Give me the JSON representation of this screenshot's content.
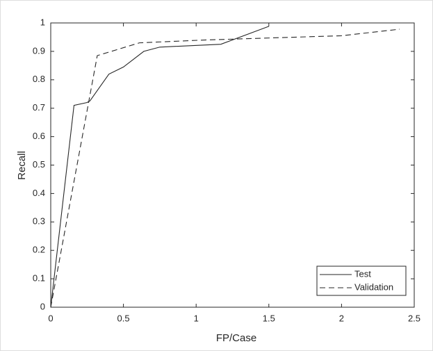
{
  "chart_data": {
    "type": "line",
    "x_label": "FP/Case",
    "y_label": "Recall",
    "xlim": [
      0,
      2.5
    ],
    "ylim": [
      0,
      1
    ],
    "xticks": [
      0,
      0.5,
      1,
      1.5,
      2,
      2.5
    ],
    "yticks": [
      0,
      0.1,
      0.2,
      0.3,
      0.4,
      0.5,
      0.6,
      0.7,
      0.8,
      0.9,
      1
    ],
    "legend": "lower right",
    "series": [
      {
        "name": "Test",
        "color": "#262626",
        "style": "solid",
        "x": [
          0,
          0.16,
          0.25,
          0.27,
          0.4,
          0.5,
          0.64,
          0.75,
          1.17,
          1.5
        ],
        "values": [
          0,
          0.71,
          0.72,
          0.726,
          0.82,
          0.845,
          0.9,
          0.915,
          0.925,
          0.988
        ]
      },
      {
        "name": "Validation",
        "color": "#262626",
        "style": "dashed",
        "x": [
          0,
          0.32,
          0.61,
          1.06,
          2.0,
          2.4
        ],
        "values": [
          0,
          0.885,
          0.93,
          0.94,
          0.955,
          0.978
        ]
      }
    ]
  }
}
